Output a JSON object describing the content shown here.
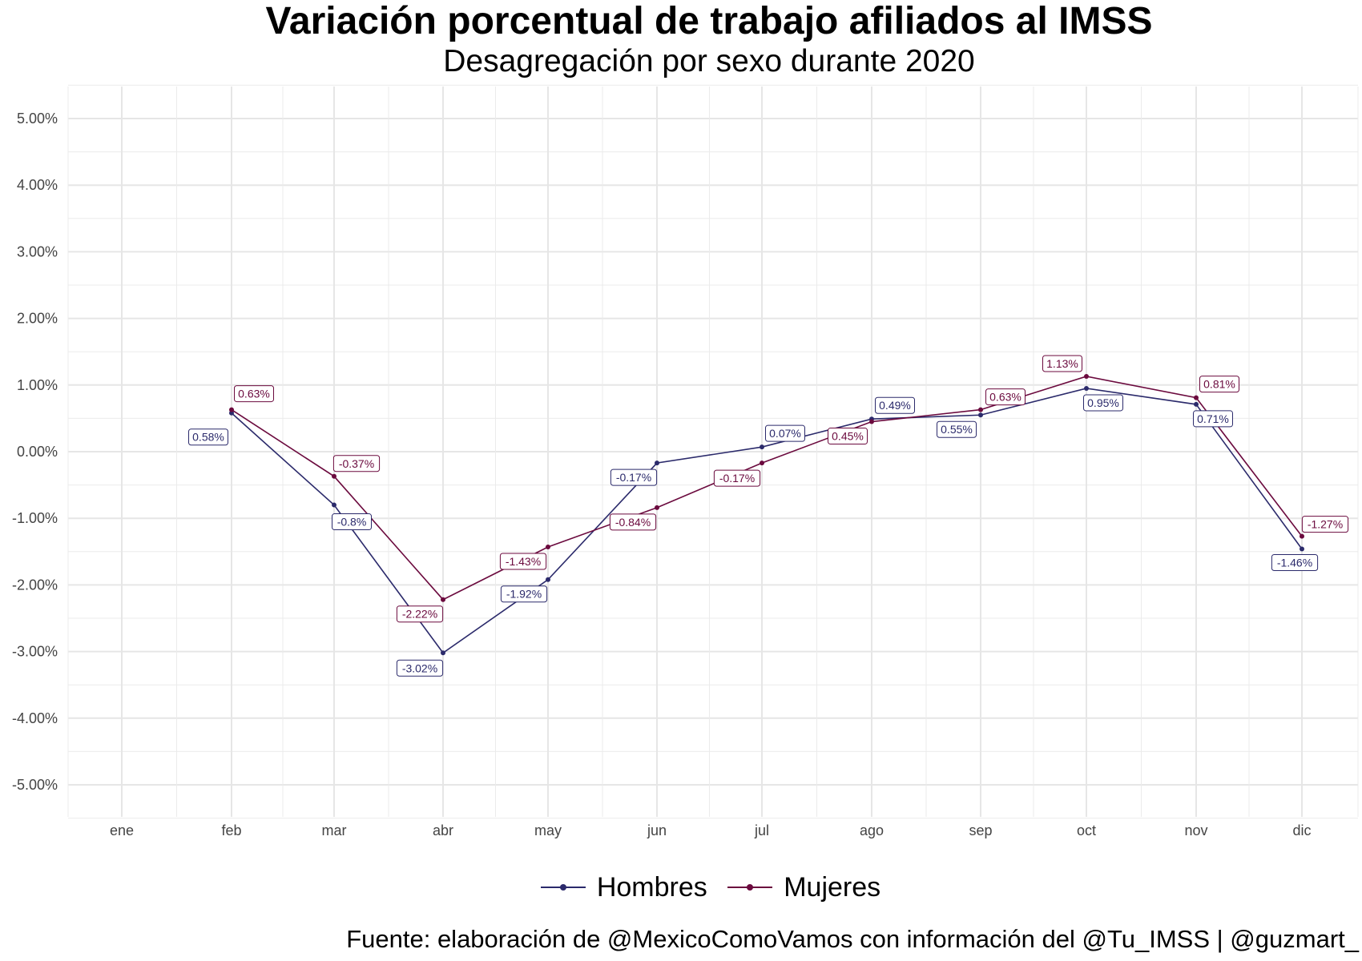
{
  "title": "Variación porcentual de trabajo afiliados al IMSS",
  "subtitle": "Desagregación por sexo durante 2020",
  "caption": "Fuente: elaboración de @MexicoComoVamos con información del @Tu_IMSS | @guzmart_",
  "colors": {
    "hombres": "#2b2a6b",
    "mujeres": "#6b0a3e",
    "grid": "#ebebeb"
  },
  "chart_data": {
    "type": "line",
    "categories": [
      "ene",
      "feb",
      "mar",
      "abr",
      "may",
      "jun",
      "jul",
      "ago",
      "sep",
      "oct",
      "nov",
      "dic"
    ],
    "ylim": [
      -5.5,
      5.5
    ],
    "yticks": [
      -5,
      -4,
      -3,
      -2,
      -1,
      0,
      1,
      2,
      3,
      4,
      5
    ],
    "ytick_labels": [
      "-5.00%",
      "-4.00%",
      "-3.00%",
      "-2.00%",
      "-1.00%",
      "0.00%",
      "1.00%",
      "2.00%",
      "3.00%",
      "4.00%",
      "5.00%"
    ],
    "grid": true,
    "legend_position": "bottom",
    "series": [
      {
        "name": "Hombres",
        "values": [
          null,
          0.58,
          -0.8,
          -3.02,
          -1.92,
          -0.17,
          0.07,
          0.49,
          0.55,
          0.95,
          0.71,
          -1.46
        ],
        "labels": [
          null,
          "0.58%",
          "-0.8%",
          "-3.02%",
          "-1.92%",
          "-0.17%",
          "0.07%",
          "0.49%",
          "0.55%",
          "0.95%",
          "0.71%",
          "-1.46%"
        ]
      },
      {
        "name": "Mujeres",
        "values": [
          null,
          0.63,
          -0.37,
          -2.22,
          -1.43,
          -0.84,
          -0.17,
          0.45,
          0.63,
          1.13,
          0.81,
          -1.27
        ],
        "labels": [
          null,
          "0.63%",
          "-0.37%",
          "-2.22%",
          "-1.43%",
          "-0.84%",
          "-0.17%",
          "0.45%",
          "0.63%",
          "1.13%",
          "0.81%",
          "-1.27%"
        ]
      }
    ]
  }
}
